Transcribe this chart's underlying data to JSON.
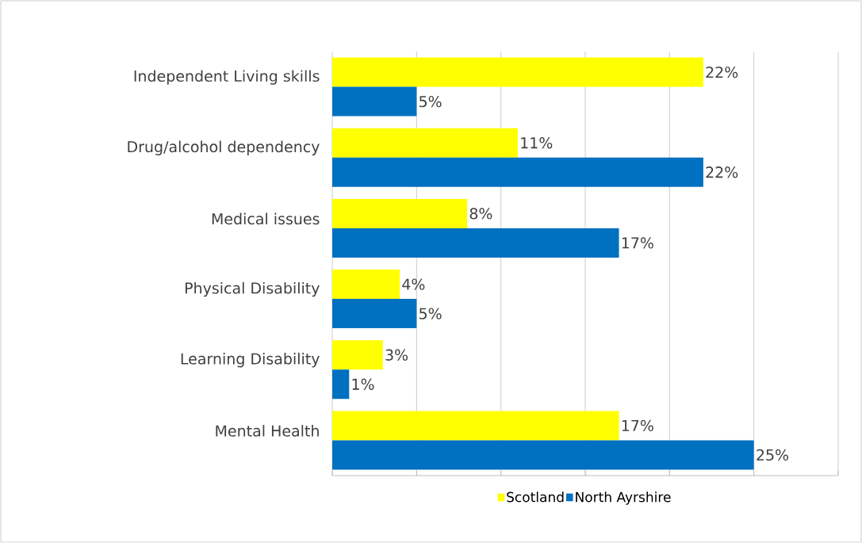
{
  "chart_data": {
    "type": "bar",
    "orientation": "horizontal",
    "categories": [
      "Independent Living skills",
      "Drug/alcohol dependency",
      "Medical issues",
      "Physical Disability",
      "Learning Disability",
      "Mental Health"
    ],
    "series": [
      {
        "name": "Scotland",
        "color": "#ffff00",
        "values": [
          22,
          11,
          8,
          4,
          3,
          17
        ],
        "value_labels": [
          "22%",
          "11%",
          "8%",
          "4%",
          "3%",
          "17%"
        ]
      },
      {
        "name": "North Ayrshire",
        "color": "#0070c0",
        "values": [
          5,
          22,
          17,
          5,
          1,
          25
        ],
        "value_labels": [
          "5%",
          "22%",
          "17%",
          "5%",
          "1%",
          "25%"
        ]
      }
    ],
    "xlim": [
      0,
      30
    ],
    "xticks": [
      {
        "value": 0,
        "label": null
      },
      {
        "value": 5,
        "label": null
      },
      {
        "value": 10,
        "label": null
      },
      {
        "value": 15,
        "label": null
      },
      {
        "value": 20,
        "label": null
      },
      {
        "value": 25,
        "label": null
      },
      {
        "value": 30,
        "label": null
      }
    ],
    "grid": "x",
    "legend": "bottom",
    "tick_labels": "y"
  }
}
